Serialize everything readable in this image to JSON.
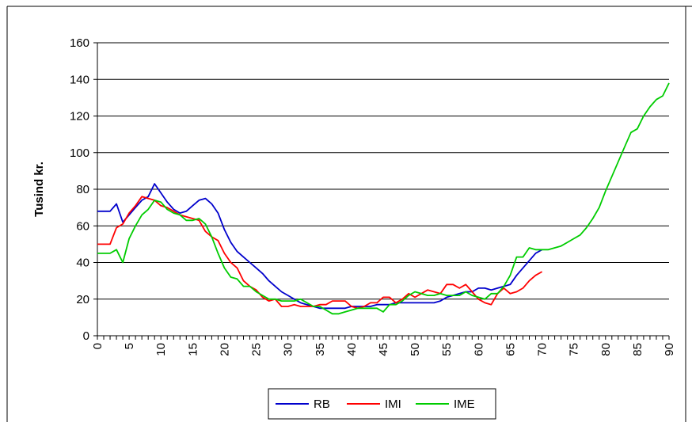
{
  "chart_data": {
    "type": "line",
    "title": "",
    "xlabel": "",
    "ylabel": "Tusind kr.",
    "xlim": [
      0,
      90
    ],
    "ylim": [
      0,
      160
    ],
    "x_ticks": [
      0,
      5,
      10,
      15,
      20,
      25,
      30,
      35,
      40,
      45,
      50,
      55,
      60,
      65,
      70,
      75,
      80,
      85,
      90
    ],
    "y_ticks": [
      0,
      20,
      40,
      60,
      80,
      100,
      120,
      140,
      160
    ],
    "grid": "horizontal",
    "legend_position": "bottom",
    "series": [
      {
        "name": "RB",
        "color": "#0000cc",
        "x": [
          0,
          1,
          2,
          3,
          4,
          5,
          6,
          7,
          8,
          9,
          10,
          11,
          12,
          13,
          14,
          15,
          16,
          17,
          18,
          19,
          20,
          21,
          22,
          23,
          24,
          25,
          26,
          27,
          28,
          29,
          30,
          31,
          32,
          33,
          34,
          35,
          36,
          37,
          38,
          39,
          40,
          41,
          42,
          43,
          44,
          45,
          46,
          47,
          48,
          49,
          50,
          51,
          52,
          53,
          54,
          55,
          56,
          57,
          58,
          59,
          60,
          61,
          62,
          63,
          64,
          65,
          66,
          67,
          68,
          69,
          70
        ],
        "y": [
          68,
          68,
          68,
          72,
          62,
          66,
          70,
          74,
          76,
          83,
          78,
          73,
          69,
          67,
          68,
          71,
          74,
          75,
          72,
          67,
          58,
          51,
          46,
          43,
          40,
          37,
          34,
          30,
          27,
          24,
          22,
          20,
          18,
          17,
          16,
          15,
          15,
          15,
          15,
          15,
          16,
          16,
          16,
          16,
          17,
          17,
          17,
          18,
          18,
          18,
          18,
          18,
          18,
          18,
          19,
          21,
          22,
          23,
          24,
          24,
          26,
          26,
          25,
          26,
          27,
          28,
          33,
          37,
          41,
          45,
          47
        ]
      },
      {
        "name": "IMI",
        "color": "#ff0000",
        "x": [
          0,
          1,
          2,
          3,
          4,
          5,
          6,
          7,
          8,
          9,
          10,
          11,
          12,
          13,
          14,
          15,
          16,
          17,
          18,
          19,
          20,
          21,
          22,
          23,
          24,
          25,
          26,
          27,
          28,
          29,
          30,
          31,
          32,
          33,
          34,
          35,
          36,
          37,
          38,
          39,
          40,
          41,
          42,
          43,
          44,
          45,
          46,
          47,
          48,
          49,
          50,
          51,
          52,
          53,
          54,
          55,
          56,
          57,
          58,
          59,
          60,
          61,
          62,
          63,
          64,
          65,
          66,
          67,
          68,
          69,
          70
        ],
        "y": [
          50,
          50,
          50,
          59,
          61,
          67,
          71,
          76,
          75,
          74,
          71,
          70,
          68,
          66,
          65,
          64,
          63,
          57,
          54,
          52,
          45,
          40,
          37,
          30,
          27,
          25,
          21,
          19,
          20,
          16,
          16,
          17,
          16,
          16,
          16,
          17,
          17,
          19,
          19,
          19,
          16,
          15,
          16,
          18,
          18,
          21,
          21,
          18,
          20,
          23,
          21,
          23,
          25,
          24,
          23,
          28,
          28,
          26,
          28,
          24,
          20,
          18,
          17,
          23,
          26,
          23,
          24,
          26,
          30,
          33,
          35
        ]
      },
      {
        "name": "IME",
        "color": "#00cc00",
        "x": [
          0,
          1,
          2,
          3,
          4,
          5,
          6,
          7,
          8,
          9,
          10,
          11,
          12,
          13,
          14,
          15,
          16,
          17,
          18,
          19,
          20,
          21,
          22,
          23,
          24,
          25,
          26,
          27,
          28,
          29,
          30,
          31,
          32,
          33,
          34,
          35,
          36,
          37,
          38,
          39,
          40,
          41,
          42,
          43,
          44,
          45,
          46,
          47,
          48,
          49,
          50,
          51,
          52,
          53,
          54,
          55,
          56,
          57,
          58,
          59,
          60,
          61,
          62,
          63,
          64,
          65,
          66,
          67,
          68,
          69,
          70,
          71,
          72,
          73,
          74,
          75,
          76,
          77,
          78,
          79,
          80,
          81,
          82,
          83,
          84,
          85,
          86,
          87,
          88,
          89,
          90
        ],
        "y": [
          45,
          45,
          45,
          47,
          40,
          53,
          60,
          66,
          69,
          74,
          73,
          69,
          67,
          66,
          63,
          63,
          64,
          61,
          54,
          45,
          37,
          32,
          31,
          27,
          27,
          24,
          22,
          20,
          20,
          19,
          19,
          19,
          20,
          18,
          16,
          16,
          14,
          12,
          12,
          13,
          14,
          15,
          15,
          15,
          15,
          13,
          17,
          17,
          19,
          22,
          24,
          23,
          22,
          22,
          23,
          22,
          22,
          22,
          24,
          22,
          21,
          20,
          23,
          23,
          27,
          33,
          43,
          43,
          48,
          47,
          47,
          47,
          48,
          49,
          51,
          53,
          55,
          59,
          64,
          70,
          79,
          87,
          95,
          103,
          111,
          113,
          120,
          125,
          129,
          131,
          138
        ]
      }
    ]
  }
}
